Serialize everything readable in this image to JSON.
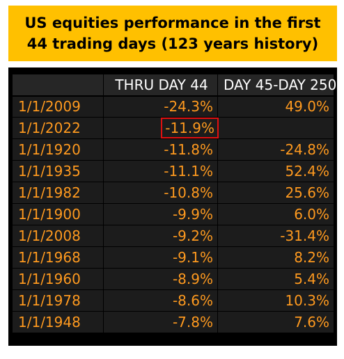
{
  "banner": {
    "title": "US equities performance in the first 44 trading days (123 years history)",
    "background": "#ffc000"
  },
  "table": {
    "headers": [
      "",
      "THRU DAY 44",
      "DAY 45-DAY 250"
    ],
    "rows": [
      {
        "date": "1/1/2009",
        "thru_day_44": "-24.3%",
        "day_45_250": "49.0%"
      },
      {
        "date": "1/1/2022",
        "thru_day_44": "-11.9%",
        "day_45_250": "",
        "highlighted": true
      },
      {
        "date": "1/1/1920",
        "thru_day_44": "-11.8%",
        "day_45_250": "-24.8%"
      },
      {
        "date": "1/1/1935",
        "thru_day_44": "-11.1%",
        "day_45_250": "52.4%"
      },
      {
        "date": "1/1/1982",
        "thru_day_44": "-10.8%",
        "day_45_250": "25.6%"
      },
      {
        "date": "1/1/1900",
        "thru_day_44": "-9.9%",
        "day_45_250": "6.0%"
      },
      {
        "date": "1/1/2008",
        "thru_day_44": "-9.2%",
        "day_45_250": "-31.4%"
      },
      {
        "date": "1/1/1968",
        "thru_day_44": "-9.1%",
        "day_45_250": "8.2%"
      },
      {
        "date": "1/1/1960",
        "thru_day_44": "-8.9%",
        "day_45_250": "5.4%"
      },
      {
        "date": "1/1/1978",
        "thru_day_44": "-8.6%",
        "day_45_250": "10.3%"
      },
      {
        "date": "1/1/1948",
        "thru_day_44": "-7.8%",
        "day_45_250": "7.6%"
      }
    ]
  },
  "colors": {
    "value_text": "#ff9a1f",
    "header_text": "#ffffff",
    "highlight_border": "#e01010",
    "panel_background": "#000000"
  }
}
